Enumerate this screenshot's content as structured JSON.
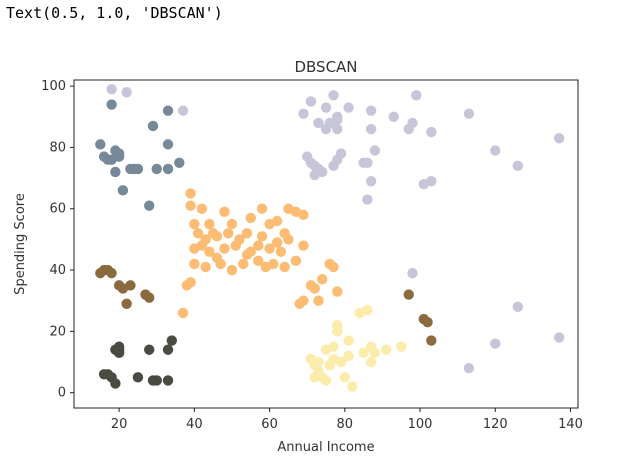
{
  "output": {
    "repr_text": "Text(0.5, 1.0, 'DBSCAN')"
  },
  "chart_data": {
    "type": "scatter",
    "title": "DBSCAN",
    "xlabel": "Annual Income",
    "ylabel": "Spending Score",
    "xlim": [
      8,
      142
    ],
    "ylim": [
      -5,
      102
    ],
    "xticks": [
      20,
      40,
      60,
      80,
      100,
      120,
      140
    ],
    "yticks": [
      0,
      20,
      40,
      60,
      80,
      100
    ],
    "grid": false,
    "series": [
      {
        "color": "#778899",
        "points": [
          [
            15,
            81
          ],
          [
            16,
            77
          ],
          [
            17,
            76
          ],
          [
            18,
            76
          ],
          [
            18,
            94
          ],
          [
            19,
            72
          ],
          [
            19,
            79
          ],
          [
            20,
            78
          ],
          [
            20,
            77
          ],
          [
            21,
            66
          ],
          [
            23,
            73
          ],
          [
            24,
            73
          ],
          [
            25,
            73
          ],
          [
            28,
            61
          ],
          [
            29,
            87
          ],
          [
            30,
            73
          ],
          [
            33,
            92
          ],
          [
            33,
            81
          ],
          [
            33,
            73
          ],
          [
            36,
            75
          ]
        ]
      },
      {
        "color": "#c7c6d8",
        "points": [
          [
            18,
            99
          ],
          [
            22,
            98
          ],
          [
            37,
            92
          ],
          [
            69,
            91
          ],
          [
            70,
            77
          ],
          [
            71,
            95
          ],
          [
            71,
            75
          ],
          [
            72,
            71
          ],
          [
            72,
            74
          ],
          [
            73,
            88
          ],
          [
            73,
            73
          ],
          [
            74,
            72
          ],
          [
            75,
            93
          ],
          [
            75,
            86
          ],
          [
            76,
            88
          ],
          [
            77,
            97
          ],
          [
            77,
            74
          ],
          [
            78,
            90
          ],
          [
            78,
            86
          ],
          [
            78,
            76
          ],
          [
            78,
            89
          ],
          [
            79,
            78
          ],
          [
            81,
            93
          ],
          [
            85,
            75
          ],
          [
            86,
            63
          ],
          [
            86,
            75
          ],
          [
            87,
            69
          ],
          [
            87,
            92
          ],
          [
            87,
            86
          ],
          [
            88,
            79
          ],
          [
            93,
            90
          ],
          [
            97,
            86
          ],
          [
            98,
            88
          ],
          [
            98,
            39
          ],
          [
            99,
            97
          ],
          [
            101,
            68
          ],
          [
            103,
            69
          ],
          [
            103,
            85
          ],
          [
            113,
            91
          ],
          [
            113,
            8
          ],
          [
            120,
            79
          ],
          [
            120,
            16
          ],
          [
            126,
            74
          ],
          [
            126,
            28
          ],
          [
            137,
            83
          ],
          [
            137,
            18
          ]
        ]
      },
      {
        "color": "#fcbc73",
        "points": [
          [
            37,
            26
          ],
          [
            38,
            35
          ],
          [
            39,
            36
          ],
          [
            39,
            61
          ],
          [
            39,
            65
          ],
          [
            40,
            42
          ],
          [
            40,
            47
          ],
          [
            40,
            55
          ],
          [
            41,
            52
          ],
          [
            42,
            48
          ],
          [
            42,
            60
          ],
          [
            43,
            41
          ],
          [
            43,
            50
          ],
          [
            44,
            46
          ],
          [
            44,
            55
          ],
          [
            45,
            52
          ],
          [
            46,
            44
          ],
          [
            46,
            51
          ],
          [
            47,
            42
          ],
          [
            48,
            47
          ],
          [
            48,
            59
          ],
          [
            49,
            52
          ],
          [
            50,
            55
          ],
          [
            50,
            40
          ],
          [
            51,
            48
          ],
          [
            52,
            50
          ],
          [
            53,
            42
          ],
          [
            54,
            45
          ],
          [
            54,
            52
          ],
          [
            55,
            46
          ],
          [
            55,
            57
          ],
          [
            57,
            43
          ],
          [
            57,
            48
          ],
          [
            58,
            51
          ],
          [
            58,
            60
          ],
          [
            59,
            41
          ],
          [
            60,
            47
          ],
          [
            60,
            55
          ],
          [
            61,
            42
          ],
          [
            62,
            49
          ],
          [
            62,
            56
          ],
          [
            63,
            46
          ],
          [
            64,
            52
          ],
          [
            64,
            41
          ],
          [
            65,
            50
          ],
          [
            65,
            60
          ],
          [
            67,
            59
          ],
          [
            67,
            43
          ],
          [
            69,
            48
          ],
          [
            69,
            58
          ],
          [
            71,
            35
          ],
          [
            72,
            34
          ],
          [
            73,
            30
          ],
          [
            74,
            37
          ],
          [
            76,
            42
          ],
          [
            77,
            41
          ],
          [
            78,
            33
          ],
          [
            69,
            30
          ],
          [
            68,
            29
          ]
        ]
      },
      {
        "color": "#8b6a3e",
        "points": [
          [
            15,
            39
          ],
          [
            16,
            40
          ],
          [
            17,
            40
          ],
          [
            18,
            39
          ],
          [
            20,
            35
          ],
          [
            21,
            34
          ],
          [
            22,
            29
          ],
          [
            23,
            35
          ],
          [
            27,
            32
          ],
          [
            28,
            31
          ],
          [
            97,
            32
          ],
          [
            101,
            24
          ],
          [
            102,
            23
          ],
          [
            103,
            17
          ]
        ]
      },
      {
        "color": "#4a4a40",
        "points": [
          [
            16,
            6
          ],
          [
            17,
            6
          ],
          [
            18,
            5
          ],
          [
            19,
            3
          ],
          [
            19,
            14
          ],
          [
            20,
            13
          ],
          [
            20,
            15
          ],
          [
            20,
            14
          ],
          [
            25,
            5
          ],
          [
            28,
            14
          ],
          [
            29,
            4
          ],
          [
            30,
            4
          ],
          [
            33,
            14
          ],
          [
            33,
            4
          ],
          [
            34,
            17
          ]
        ]
      },
      {
        "color": "#fcecac",
        "points": [
          [
            71,
            11
          ],
          [
            72,
            9
          ],
          [
            72,
            5
          ],
          [
            73,
            7
          ],
          [
            73,
            10
          ],
          [
            74,
            5
          ],
          [
            75,
            14
          ],
          [
            75,
            4
          ],
          [
            76,
            9
          ],
          [
            77,
            11
          ],
          [
            77,
            15
          ],
          [
            78,
            20
          ],
          [
            78,
            22
          ],
          [
            79,
            10
          ],
          [
            80,
            5
          ],
          [
            81,
            12
          ],
          [
            81,
            17
          ],
          [
            82,
            2
          ],
          [
            84,
            26
          ],
          [
            85,
            13
          ],
          [
            86,
            27
          ],
          [
            87,
            10
          ],
          [
            87,
            15
          ],
          [
            88,
            13
          ],
          [
            91,
            14
          ],
          [
            95,
            15
          ]
        ]
      }
    ]
  }
}
